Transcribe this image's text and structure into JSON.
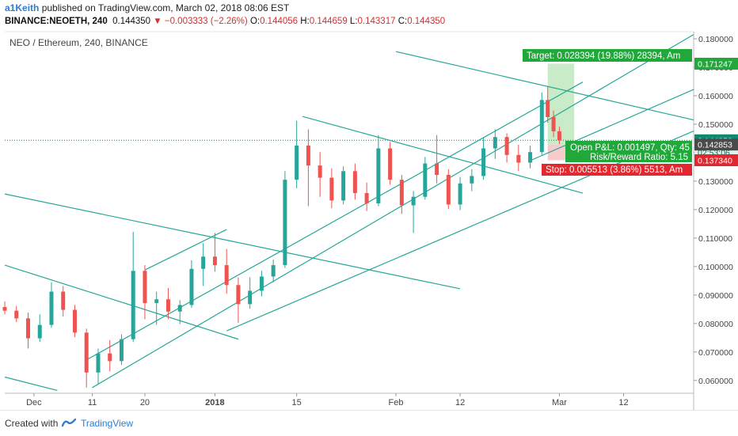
{
  "header": {
    "author": "a1Keith",
    "published_text": "published on TradingView.com, March 02, 2018 08:06 EST",
    "symbol": "BINANCE:NEOETH, 240",
    "last": "0.144350",
    "change": "−0.003333 (−2.26%)",
    "o_label": "O:",
    "o": "0.144056",
    "h_label": "H:",
    "h": "0.144659",
    "l_label": "L:",
    "l": "0.143317",
    "c_label": "C:",
    "c": "0.144350"
  },
  "footer": {
    "created_with": "Created with",
    "brand": "TradingView"
  },
  "colors": {
    "up": "#26a69a",
    "down": "#ef5350",
    "trend": "#26a69a",
    "target": "#21a83a",
    "stop": "#e0282e",
    "last": "#0e8a72",
    "crosshair": "#555555"
  },
  "chart_data": {
    "type": "candlestick",
    "title": "NEO / Ethereum, 240, BINANCE",
    "x_ticks": [
      "Dec",
      "11",
      "20",
      "2018",
      "15",
      "Feb",
      "12",
      "Mar",
      "12"
    ],
    "y_ticks": [
      "0.060000",
      "0.070000",
      "0.080000",
      "0.090000",
      "0.100000",
      "0.110000",
      "0.120000",
      "0.130000",
      "0.140000",
      "0.150000",
      "0.160000",
      "0.170000",
      "0.180000"
    ],
    "ylim": [
      0.0555,
      0.1825
    ],
    "grid": false,
    "price_labels": {
      "last": "0.144350",
      "countdown": "02:53:06",
      "entry": "0.142853",
      "stop": "0.137340",
      "target": "0.171247"
    },
    "annotations": {
      "target": "Target: 0.028394 (19.88%) 28394, Am",
      "pnl": "Open P&L: 0.001497, Qty: 45",
      "rr": "Risk/Reward Ratio: 5.15",
      "stop": "Stop: 0.005513 (3.86%) 5513, Am"
    },
    "long_position": {
      "entry": 0.142853,
      "target": 0.171247,
      "stop": 0.13734,
      "start_time": "2018-02-27",
      "end_time": "2018-03-03"
    },
    "trendlines": [
      {
        "p1": [
          "2017-11-26",
          0.1255
        ],
        "p2": [
          "2018-02-12",
          0.0922
        ]
      },
      {
        "p1": [
          "2017-11-26",
          0.1005
        ],
        "p2": [
          "2018-01-05",
          0.0745
        ]
      },
      {
        "p1": [
          "2017-11-26",
          0.0612
        ],
        "p2": [
          "2017-12-05",
          0.0565
        ]
      },
      {
        "p1": [
          "2017-12-10",
          0.0672
        ],
        "p2": [
          "2018-03-05",
          0.1648
        ]
      },
      {
        "p1": [
          "2017-12-11",
          0.0575
        ],
        "p2": [
          "2018-03-24",
          0.1815
        ]
      },
      {
        "p1": [
          "2017-12-20",
          0.0988
        ],
        "p2": [
          "2018-01-03",
          0.113
        ]
      },
      {
        "p1": [
          "2018-01-16",
          0.1527
        ],
        "p2": [
          "2018-03-05",
          0.1258
        ]
      },
      {
        "p1": [
          "2018-02-01",
          0.1755
        ],
        "p2": [
          "2018-03-24",
          0.1515
        ]
      },
      {
        "p1": [
          "2018-01-03",
          0.0774
        ],
        "p2": [
          "2018-03-24",
          0.1476
        ]
      },
      {
        "p1": [
          "2018-02-24",
          0.1372
        ],
        "p2": [
          "2018-03-24",
          0.1622
        ]
      }
    ],
    "series": [
      {
        "candles": [
          {
            "t": "2017-11-26",
            "o": 0.0858,
            "h": 0.0878,
            "l": 0.0832,
            "c": 0.0845
          },
          {
            "t": "2017-11-28",
            "o": 0.0845,
            "h": 0.0862,
            "l": 0.0805,
            "c": 0.0818
          },
          {
            "t": "2017-11-30",
            "o": 0.0818,
            "h": 0.0838,
            "l": 0.0712,
            "c": 0.0748
          },
          {
            "t": "2017-12-02",
            "o": 0.0748,
            "h": 0.0832,
            "l": 0.0735,
            "c": 0.0795
          },
          {
            "t": "2017-12-04",
            "o": 0.0795,
            "h": 0.0945,
            "l": 0.0785,
            "c": 0.0912
          },
          {
            "t": "2017-12-06",
            "o": 0.0912,
            "h": 0.0932,
            "l": 0.0825,
            "c": 0.0848
          },
          {
            "t": "2017-12-08",
            "o": 0.0848,
            "h": 0.0865,
            "l": 0.0752,
            "c": 0.0768
          },
          {
            "t": "2017-12-10",
            "o": 0.0768,
            "h": 0.0782,
            "l": 0.0575,
            "c": 0.0628
          },
          {
            "t": "2017-12-12",
            "o": 0.0628,
            "h": 0.0712,
            "l": 0.0588,
            "c": 0.0695
          },
          {
            "t": "2017-12-14",
            "o": 0.0695,
            "h": 0.0742,
            "l": 0.0632,
            "c": 0.0668
          },
          {
            "t": "2017-12-16",
            "o": 0.0668,
            "h": 0.0762,
            "l": 0.0655,
            "c": 0.0745
          },
          {
            "t": "2017-12-18",
            "o": 0.0745,
            "h": 0.1122,
            "l": 0.0735,
            "c": 0.0985
          },
          {
            "t": "2017-12-20",
            "o": 0.0985,
            "h": 0.1005,
            "l": 0.0815,
            "c": 0.0872
          },
          {
            "t": "2017-12-22",
            "o": 0.0872,
            "h": 0.0912,
            "l": 0.0795,
            "c": 0.0885
          },
          {
            "t": "2017-12-24",
            "o": 0.0885,
            "h": 0.0925,
            "l": 0.0815,
            "c": 0.0842
          },
          {
            "t": "2017-12-26",
            "o": 0.0842,
            "h": 0.0882,
            "l": 0.0798,
            "c": 0.0865
          },
          {
            "t": "2017-12-28",
            "o": 0.0865,
            "h": 0.1022,
            "l": 0.0855,
            "c": 0.0992
          },
          {
            "t": "2017-12-30",
            "o": 0.0992,
            "h": 0.1082,
            "l": 0.0932,
            "c": 0.1035
          },
          {
            "t": "2018-01-01",
            "o": 0.1035,
            "h": 0.1118,
            "l": 0.0982,
            "c": 0.1005
          },
          {
            "t": "2018-01-03",
            "o": 0.1005,
            "h": 0.1062,
            "l": 0.0905,
            "c": 0.0935
          },
          {
            "t": "2018-01-05",
            "o": 0.0935,
            "h": 0.0962,
            "l": 0.0802,
            "c": 0.0868
          },
          {
            "t": "2018-01-07",
            "o": 0.0868,
            "h": 0.0962,
            "l": 0.0852,
            "c": 0.0915
          },
          {
            "t": "2018-01-09",
            "o": 0.0915,
            "h": 0.0985,
            "l": 0.0895,
            "c": 0.0965
          },
          {
            "t": "2018-01-11",
            "o": 0.0965,
            "h": 0.1025,
            "l": 0.0945,
            "c": 0.1005
          },
          {
            "t": "2018-01-13",
            "o": 0.1005,
            "h": 0.1335,
            "l": 0.0995,
            "c": 0.1305
          },
          {
            "t": "2018-01-15",
            "o": 0.1305,
            "h": 0.1512,
            "l": 0.1275,
            "c": 0.1425
          },
          {
            "t": "2018-01-17",
            "o": 0.1425,
            "h": 0.1482,
            "l": 0.1212,
            "c": 0.1355
          },
          {
            "t": "2018-01-19",
            "o": 0.1355,
            "h": 0.1402,
            "l": 0.1245,
            "c": 0.1312
          },
          {
            "t": "2018-01-21",
            "o": 0.1312,
            "h": 0.1345,
            "l": 0.1205,
            "c": 0.1232
          },
          {
            "t": "2018-01-23",
            "o": 0.1232,
            "h": 0.1352,
            "l": 0.1218,
            "c": 0.1335
          },
          {
            "t": "2018-01-25",
            "o": 0.1335,
            "h": 0.1362,
            "l": 0.1235,
            "c": 0.1258
          },
          {
            "t": "2018-01-27",
            "o": 0.1258,
            "h": 0.1295,
            "l": 0.1195,
            "c": 0.1222
          },
          {
            "t": "2018-01-29",
            "o": 0.1222,
            "h": 0.1462,
            "l": 0.1212,
            "c": 0.1415
          },
          {
            "t": "2018-01-31",
            "o": 0.1415,
            "h": 0.1438,
            "l": 0.1288,
            "c": 0.1305
          },
          {
            "t": "2018-02-02",
            "o": 0.1305,
            "h": 0.1322,
            "l": 0.1185,
            "c": 0.1215
          },
          {
            "t": "2018-02-04",
            "o": 0.1215,
            "h": 0.1265,
            "l": 0.1118,
            "c": 0.1245
          },
          {
            "t": "2018-02-06",
            "o": 0.1245,
            "h": 0.1385,
            "l": 0.1235,
            "c": 0.1362
          },
          {
            "t": "2018-02-08",
            "o": 0.1362,
            "h": 0.1462,
            "l": 0.1292,
            "c": 0.1322
          },
          {
            "t": "2018-02-10",
            "o": 0.1322,
            "h": 0.1342,
            "l": 0.1202,
            "c": 0.1218
          },
          {
            "t": "2018-02-12",
            "o": 0.1218,
            "h": 0.1315,
            "l": 0.1198,
            "c": 0.1292
          },
          {
            "t": "2018-02-14",
            "o": 0.1292,
            "h": 0.1342,
            "l": 0.1265,
            "c": 0.1318
          },
          {
            "t": "2018-02-16",
            "o": 0.1318,
            "h": 0.1452,
            "l": 0.1305,
            "c": 0.1415
          },
          {
            "t": "2018-02-18",
            "o": 0.1415,
            "h": 0.1482,
            "l": 0.1378,
            "c": 0.1455
          },
          {
            "t": "2018-02-20",
            "o": 0.1455,
            "h": 0.1468,
            "l": 0.1365,
            "c": 0.1392
          },
          {
            "t": "2018-02-22",
            "o": 0.1392,
            "h": 0.1428,
            "l": 0.1335,
            "c": 0.1365
          },
          {
            "t": "2018-02-24",
            "o": 0.1365,
            "h": 0.1425,
            "l": 0.1345,
            "c": 0.1402
          },
          {
            "t": "2018-02-26",
            "o": 0.1402,
            "h": 0.1612,
            "l": 0.1392,
            "c": 0.1585
          },
          {
            "t": "2018-02-27",
            "o": 0.1585,
            "h": 0.1632,
            "l": 0.1505,
            "c": 0.1525
          },
          {
            "t": "2018-02-28",
            "o": 0.1525,
            "h": 0.1548,
            "l": 0.1455,
            "c": 0.1475
          },
          {
            "t": "2018-03-01",
            "o": 0.1475,
            "h": 0.1492,
            "l": 0.143,
            "c": 0.14435
          }
        ]
      }
    ]
  }
}
